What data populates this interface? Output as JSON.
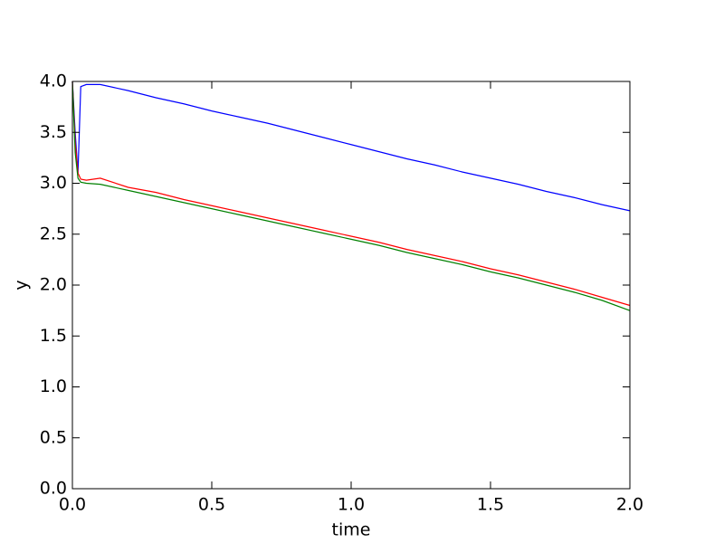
{
  "chart_data": {
    "type": "line",
    "xlabel": "time",
    "ylabel": "y",
    "x": [
      0,
      0.01,
      0.02,
      0.03,
      0.05,
      0.1,
      0.2,
      0.3,
      0.4,
      0.5,
      0.6,
      0.7,
      0.8,
      0.9,
      1.0,
      1.1,
      1.2,
      1.3,
      1.4,
      1.5,
      1.6,
      1.7,
      1.8,
      1.9,
      2.0
    ],
    "series": [
      {
        "color": "#0000ff",
        "values": [
          4.0,
          3.5,
          3.1,
          3.95,
          3.97,
          3.97,
          3.91,
          3.84,
          3.78,
          3.71,
          3.65,
          3.59,
          3.52,
          3.45,
          3.38,
          3.31,
          3.24,
          3.18,
          3.11,
          3.05,
          2.99,
          2.92,
          2.86,
          2.79,
          2.73
        ]
      },
      {
        "color": "#ff0000",
        "values": [
          4.0,
          3.4,
          3.1,
          3.04,
          3.03,
          3.05,
          2.96,
          2.91,
          2.84,
          2.78,
          2.72,
          2.66,
          2.6,
          2.54,
          2.48,
          2.42,
          2.35,
          2.29,
          2.23,
          2.16,
          2.1,
          2.03,
          1.96,
          1.88,
          1.8
        ]
      },
      {
        "color": "#008000",
        "values": [
          4.0,
          3.3,
          3.05,
          3.01,
          3.0,
          2.99,
          2.93,
          2.87,
          2.81,
          2.75,
          2.69,
          2.63,
          2.57,
          2.51,
          2.45,
          2.39,
          2.32,
          2.26,
          2.2,
          2.13,
          2.07,
          2.0,
          1.93,
          1.85,
          1.75
        ]
      }
    ],
    "xlim": [
      0,
      2
    ],
    "xticks": [
      {
        "value": 0,
        "label": "0.0"
      },
      0.5,
      {
        "value": 1,
        "label": "1.0"
      },
      1.5,
      {
        "value": 2,
        "label": "2.0"
      }
    ],
    "ylim": [
      0,
      4
    ],
    "yticks": [
      {
        "value": 0,
        "label": "0.0"
      },
      0.5,
      {
        "value": 1,
        "label": "1.0"
      },
      1.5,
      {
        "value": 2,
        "label": "2.0"
      },
      2.5,
      {
        "value": 3,
        "label": "3.0"
      },
      3.5,
      {
        "value": 4,
        "label": "4.0"
      }
    ],
    "grid": false
  }
}
